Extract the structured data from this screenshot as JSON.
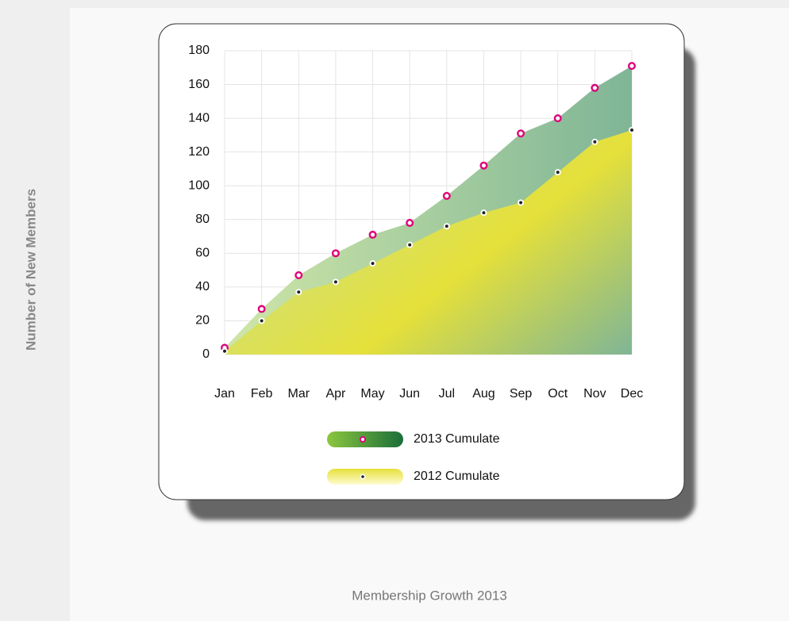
{
  "chart_data": {
    "type": "area",
    "title": "Membership Growth 2013",
    "y_label": "Number of New Members",
    "categories": [
      "Jan",
      "Feb",
      "Mar",
      "Apr",
      "May",
      "Jun",
      "Jul",
      "Aug",
      "Sep",
      "Oct",
      "Nov",
      "Dec"
    ],
    "series": [
      {
        "name": "2013 Cumulate",
        "color": "#7fb596",
        "marker_color": "#e0007a",
        "values": [
          4,
          27,
          47,
          60,
          71,
          78,
          94,
          112,
          131,
          140,
          158,
          171
        ]
      },
      {
        "name": "2012 Cumulate",
        "color": "#e5e03a",
        "marker_color": "#222222",
        "values": [
          2,
          20,
          37,
          43,
          54,
          65,
          76,
          84,
          90,
          108,
          126,
          133
        ]
      }
    ],
    "ylim": [
      0,
      180
    ],
    "yticks": [
      0,
      20,
      40,
      60,
      80,
      100,
      120,
      140,
      160,
      180
    ],
    "grid": true
  }
}
